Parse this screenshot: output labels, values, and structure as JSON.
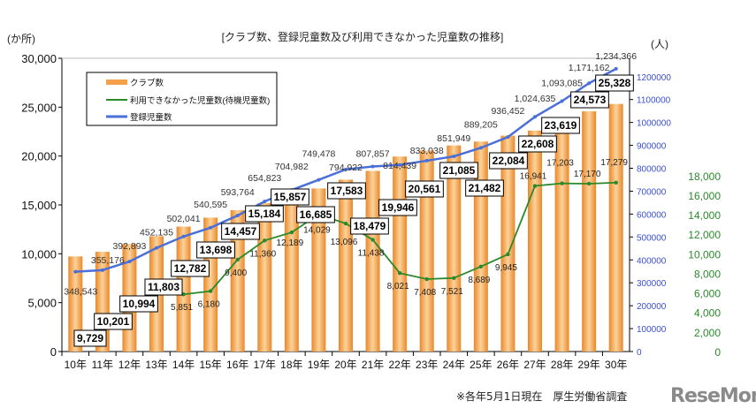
{
  "chart_data": {
    "type": "bar+line",
    "title": "[クラブ数、登録児童数及び利用できなかった児童数の推移]",
    "left_unit": "(か所)",
    "right_unit": "(人)",
    "categories": [
      "10年",
      "11年",
      "12年",
      "13年",
      "14年",
      "15年",
      "16年",
      "17年",
      "18年",
      "19年",
      "20年",
      "21年",
      "22年",
      "23年",
      "24年",
      "25年",
      "26年",
      "27年",
      "28年",
      "29年",
      "30年"
    ],
    "series": [
      {
        "name": "クラブ数",
        "type": "bar",
        "axis": "left",
        "color": "#f5a04a",
        "values": [
          9729,
          10201,
          10994,
          11803,
          12782,
          13698,
          14457,
          15184,
          15857,
          16685,
          17583,
          18479,
          19946,
          20561,
          21085,
          21482,
          22084,
          22608,
          23619,
          24573,
          25328
        ]
      },
      {
        "name": "利用できなかった児童数(待機児童数)",
        "type": "line",
        "axis": "right2",
        "color": "#2a8a2a",
        "values": [
          null,
          null,
          null,
          null,
          5851,
          6180,
          9400,
          11360,
          12189,
          14029,
          13096,
          11438,
          8021,
          7408,
          7521,
          8689,
          9945,
          16941,
          17203,
          17170,
          17279
        ]
      },
      {
        "name": "登録児童数",
        "type": "line",
        "axis": "right1",
        "color": "#4a6fd8",
        "values": [
          348543,
          355176,
          392893,
          452135,
          502041,
          540595,
          593764,
          654823,
          704982,
          749478,
          794922,
          807857,
          814439,
          833038,
          851949,
          889205,
          936452,
          1024635,
          1093085,
          1171162,
          1234366
        ]
      }
    ],
    "left_axis": {
      "range": [
        0,
        30000
      ],
      "ticks": [
        "0",
        "5,000",
        "10,000",
        "15,000",
        "20,000",
        "25,000",
        "30,000"
      ]
    },
    "right1_axis": {
      "range": [
        0,
        1280000
      ],
      "color": "#3a4fd0",
      "ticks": [
        "0",
        "100000",
        "200000",
        "300000",
        "400000",
        "500000",
        "600000",
        "700000",
        "800000",
        "900000",
        "1000000",
        "1100000",
        "1200000"
      ]
    },
    "right2_axis": {
      "range": [
        0,
        30000
      ],
      "color": "#2a8a2a",
      "ticks": [
        "0",
        "2,000",
        "4,000",
        "6,000",
        "8,000",
        "10,000",
        "12,000",
        "14,000",
        "16,000",
        "18,000"
      ]
    },
    "legend": "top-left"
  },
  "footer": "※各年5月1日現在　厚生労働省調査",
  "logo": "ReseMom"
}
